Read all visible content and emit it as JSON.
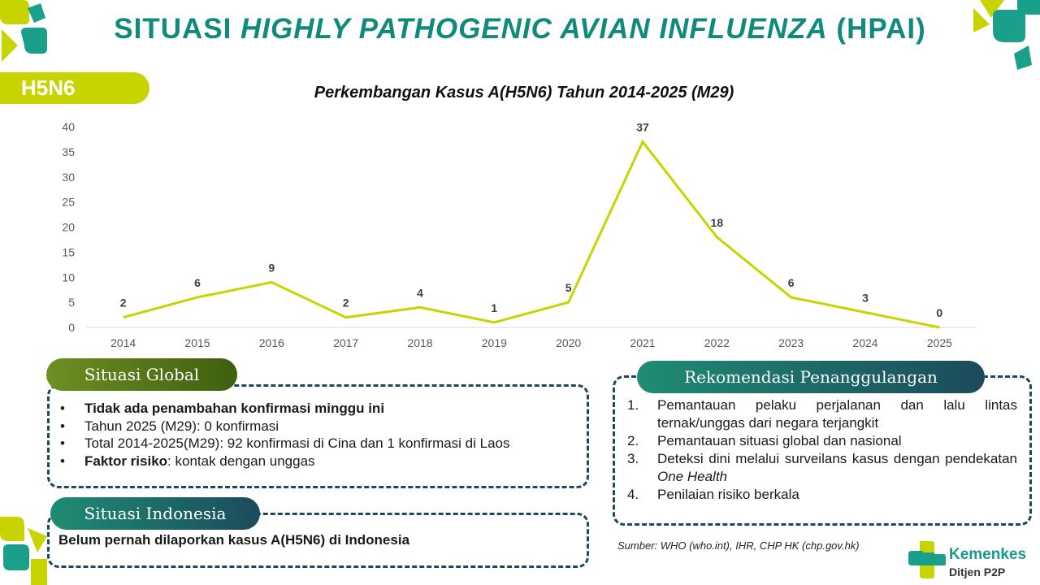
{
  "header": {
    "title_prefix": "SITUASI ",
    "title_italic": "HIGHLY PATHOGENIC AVIAN INFLUENZA",
    "title_suffix": " (HPAI)",
    "tag": "H5N6"
  },
  "chart_data": {
    "type": "line",
    "title": "Perkembangan Kasus A(H5N6) Tahun 2014-2025 (M29)",
    "categories": [
      "2014",
      "2015",
      "2016",
      "2017",
      "2018",
      "2019",
      "2020",
      "2021",
      "2022",
      "2023",
      "2024",
      "2025"
    ],
    "values": [
      2,
      6,
      9,
      2,
      4,
      1,
      5,
      37,
      18,
      6,
      3,
      0
    ],
    "ylim": [
      0,
      40
    ],
    "yticks": [
      0,
      5,
      10,
      15,
      20,
      25,
      30,
      35,
      40
    ],
    "grid": false,
    "line_color": "#c8d400",
    "data_labels": true
  },
  "global": {
    "heading": "Situasi Global",
    "items": [
      {
        "bold": "Tidak ada penambahan konfirmasi minggu ini",
        "text": ""
      },
      {
        "bold": "",
        "text": "Tahun 2025 (M29): 0 konfirmasi"
      },
      {
        "bold": "",
        "text": "Total 2014-2025(M29): 92 konfirmasi di Cina dan 1 konfirmasi di Laos"
      },
      {
        "bold": "Faktor risiko",
        "text": ": kontak dengan unggas"
      }
    ]
  },
  "indonesia": {
    "heading": "Situasi Indonesia",
    "text": "Belum pernah dilaporkan kasus A(H5N6) di Indonesia"
  },
  "rekomendasi": {
    "heading": "Rekomendasi Penanggulangan",
    "items": [
      {
        "num": "1.",
        "text": "Pemantauan pelaku perjalanan dan lalu lintas ternak/unggas dari negara terjangkit",
        "italic": ""
      },
      {
        "num": "2.",
        "text": "Pemantauan situasi global dan nasional",
        "italic": ""
      },
      {
        "num": "3.",
        "text": "Deteksi dini melalui surveilans kasus dengan pendekatan ",
        "italic": "One Health"
      },
      {
        "num": "4.",
        "text": "Penilaian risiko berkala",
        "italic": ""
      }
    ]
  },
  "source": "Sumber: WHO (who.int), IHR, CHP HK (chp.gov.hk)",
  "logo": {
    "name": "Kemenkes",
    "sub": "Ditjen P2P"
  },
  "colors": {
    "teal": "#0f8a7c",
    "lime": "#c8d400",
    "navy": "#1c4a5c",
    "olive": "#5a7a1a"
  }
}
